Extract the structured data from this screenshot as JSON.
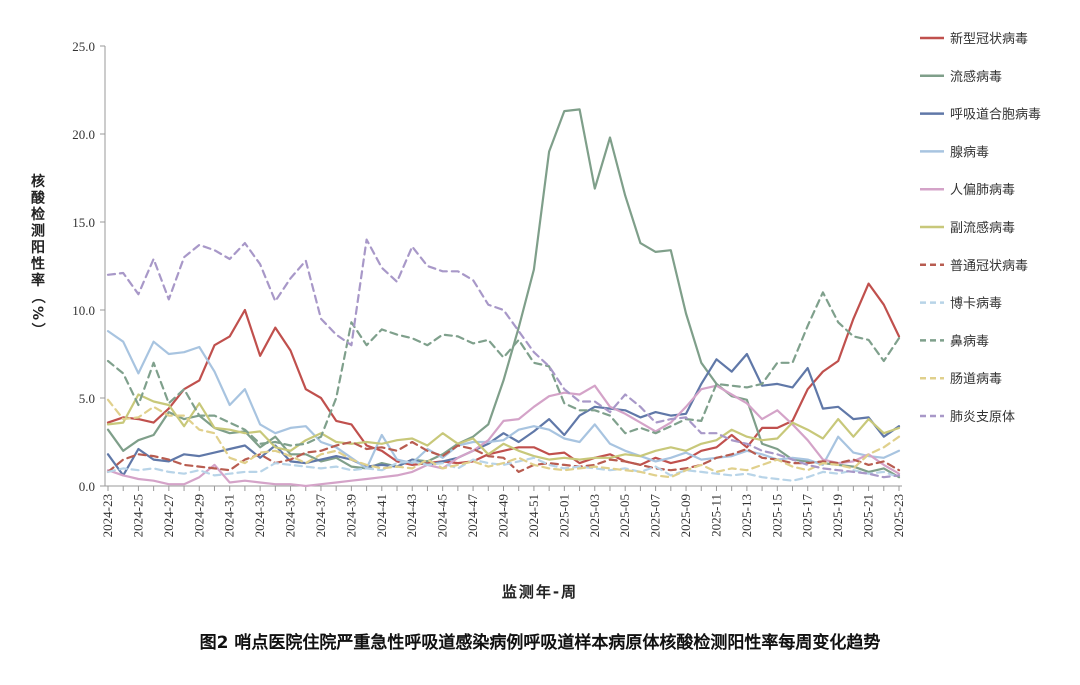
{
  "caption": "图2 哨点医院住院严重急性呼吸道感染病例呼吸道样本病原体核酸检测阳性率每周变化趋势",
  "chart_data": {
    "type": "line",
    "title": "图2 哨点医院住院严重急性呼吸道感染病例呼吸道样本病原体核酸检测阳性率每周变化趋势",
    "xlabel": "监测年-周",
    "ylabel": "核酸检测阳性率（%）",
    "ylabel_chars": [
      "核",
      "酸",
      "检",
      "测",
      "阳",
      "性",
      "率",
      "（",
      "%",
      "）"
    ],
    "ylim": [
      0,
      25
    ],
    "yticks": [
      0,
      5,
      10,
      15,
      20,
      25
    ],
    "ytick_labels": [
      "0.0",
      "5.0",
      "10.0",
      "15.0",
      "20.0",
      "25.0"
    ],
    "x": [
      "2024-23",
      "2024-24",
      "2024-25",
      "2024-26",
      "2024-27",
      "2024-28",
      "2024-29",
      "2024-30",
      "2024-31",
      "2024-32",
      "2024-33",
      "2024-34",
      "2024-35",
      "2024-36",
      "2024-37",
      "2024-38",
      "2024-39",
      "2024-40",
      "2024-41",
      "2024-42",
      "2024-43",
      "2024-44",
      "2024-45",
      "2024-46",
      "2024-47",
      "2024-48",
      "2024-49",
      "2024-50",
      "2024-51",
      "2024-52",
      "2025-01",
      "2025-02",
      "2025-03",
      "2025-04",
      "2025-05",
      "2025-06",
      "2025-07",
      "2025-08",
      "2025-09",
      "2025-10",
      "2025-11",
      "2025-12",
      "2025-13",
      "2025-14",
      "2025-15",
      "2025-16",
      "2025-17",
      "2025-18",
      "2025-19",
      "2025-20",
      "2025-21",
      "2025-22",
      "2025-23"
    ],
    "xtick_labels": [
      "2024-23",
      "2024-25",
      "2024-27",
      "2024-29",
      "2024-31",
      "2024-33",
      "2024-35",
      "2024-37",
      "2024-39",
      "2024-41",
      "2024-43",
      "2024-45",
      "2024-47",
      "2024-49",
      "2024-51",
      "2025-01",
      "2025-03",
      "2025-05",
      "2025-07",
      "2025-09",
      "2025-11",
      "2025-13",
      "2025-15",
      "2025-17",
      "2025-19",
      "2025-21",
      "2025-23"
    ],
    "series": [
      {
        "name": "新型冠状病毒",
        "color": "#c0504d",
        "dash": "solid",
        "values": [
          3.6,
          3.9,
          3.8,
          3.6,
          4.4,
          5.5,
          6.0,
          8.0,
          8.5,
          10.0,
          7.4,
          9.0,
          7.7,
          5.5,
          5.0,
          3.7,
          3.5,
          2.3,
          2.0,
          1.4,
          1.2,
          1.3,
          1.4,
          1.3,
          1.4,
          1.8,
          2.0,
          2.2,
          2.2,
          1.8,
          1.9,
          1.3,
          1.6,
          1.8,
          1.4,
          1.2,
          1.6,
          1.3,
          1.5,
          2.0,
          2.2,
          2.9,
          2.2,
          3.3,
          3.3,
          3.7,
          5.5,
          6.5,
          7.1,
          9.5,
          11.5,
          10.3,
          8.5
        ]
      },
      {
        "name": "流感病毒",
        "color": "#7f9f8a",
        "dash": "solid",
        "values": [
          3.2,
          2.0,
          2.6,
          2.9,
          4.2,
          3.8,
          4.0,
          3.3,
          3.0,
          3.1,
          2.2,
          2.8,
          1.8,
          1.8,
          1.4,
          1.6,
          1.1,
          1.0,
          1.3,
          1.1,
          1.5,
          1.4,
          1.8,
          2.4,
          2.8,
          3.5,
          6.0,
          9.0,
          12.3,
          19.0,
          21.3,
          21.4,
          16.9,
          19.8,
          16.5,
          13.8,
          13.3,
          13.4,
          9.8,
          7.0,
          5.8,
          5.1,
          4.9,
          2.4,
          2.1,
          1.5,
          1.4,
          1.3,
          1.2,
          1.1,
          0.8,
          1.0,
          0.5
        ]
      },
      {
        "name": "呼吸道合胞病毒",
        "color": "#6078a8",
        "dash": "solid",
        "values": [
          1.8,
          0.6,
          2.1,
          1.5,
          1.4,
          1.8,
          1.7,
          1.9,
          2.1,
          2.3,
          1.6,
          2.3,
          1.4,
          1.3,
          1.5,
          1.7,
          1.5,
          1.1,
          1.2,
          1.1,
          1.5,
          1.2,
          1.4,
          1.6,
          2.0,
          2.4,
          3.0,
          2.5,
          3.1,
          3.8,
          2.9,
          4.0,
          4.5,
          4.4,
          4.3,
          3.9,
          4.2,
          4.0,
          4.1,
          5.8,
          7.2,
          6.5,
          7.5,
          5.7,
          5.8,
          5.6,
          6.7,
          4.4,
          4.5,
          3.8,
          3.9,
          2.8,
          3.4
        ]
      },
      {
        "name": "腺病毒",
        "color": "#a8c4e0",
        "dash": "solid",
        "values": [
          8.8,
          8.2,
          6.4,
          8.2,
          7.5,
          7.6,
          7.9,
          6.5,
          4.6,
          5.5,
          3.5,
          3.0,
          3.3,
          3.4,
          2.5,
          2.2,
          1.6,
          1.0,
          2.9,
          1.5,
          1.3,
          2.1,
          1.6,
          2.3,
          2.5,
          2.5,
          2.6,
          3.2,
          3.4,
          3.2,
          2.7,
          2.5,
          3.5,
          2.4,
          2.0,
          1.7,
          1.4,
          1.6,
          1.9,
          1.5,
          1.6,
          1.7,
          2.0,
          1.8,
          1.5,
          1.6,
          1.5,
          1.2,
          2.8,
          1.9,
          1.7,
          1.6,
          2.0
        ]
      },
      {
        "name": "人偏肺病毒",
        "color": "#d4a3c8",
        "dash": "solid",
        "values": [
          0.9,
          0.6,
          0.4,
          0.3,
          0.1,
          0.1,
          0.5,
          1.2,
          0.2,
          0.3,
          0.2,
          0.1,
          0.1,
          0.0,
          0.1,
          0.2,
          0.3,
          0.4,
          0.5,
          0.6,
          0.8,
          1.2,
          1.0,
          1.6,
          2.0,
          2.6,
          3.7,
          3.8,
          4.5,
          5.1,
          5.3,
          5.2,
          5.7,
          4.5,
          4.1,
          3.6,
          3.1,
          3.6,
          4.5,
          5.5,
          5.7,
          5.2,
          4.7,
          3.8,
          4.3,
          3.5,
          2.6,
          1.5,
          1.3,
          1.4,
          1.8,
          1.2,
          0.7
        ]
      },
      {
        "name": "副流感病毒",
        "color": "#c8c87a",
        "dash": "solid",
        "values": [
          3.5,
          3.6,
          5.2,
          4.8,
          4.6,
          3.4,
          4.7,
          3.3,
          3.2,
          3.0,
          3.1,
          2.2,
          2.0,
          2.6,
          3.0,
          2.5,
          2.4,
          2.5,
          2.4,
          2.6,
          2.7,
          2.3,
          3.0,
          2.4,
          2.7,
          1.8,
          2.4,
          2.0,
          1.7,
          1.5,
          1.6,
          1.5,
          1.6,
          1.6,
          1.8,
          1.7,
          2.0,
          2.2,
          2.0,
          2.4,
          2.6,
          3.2,
          2.8,
          2.6,
          2.7,
          3.6,
          3.2,
          2.7,
          3.8,
          2.8,
          3.8,
          3.0,
          3.3
        ]
      },
      {
        "name": "普通冠状病毒",
        "color": "#b85c50",
        "dash": "dash",
        "values": [
          0.8,
          1.5,
          1.8,
          1.7,
          1.5,
          1.2,
          1.1,
          1.0,
          0.9,
          1.5,
          1.8,
          1.3,
          1.5,
          1.9,
          2.0,
          2.3,
          2.5,
          2.1,
          2.2,
          2.0,
          2.5,
          2.0,
          1.7,
          2.3,
          2.1,
          1.7,
          1.6,
          0.8,
          1.2,
          1.3,
          1.2,
          1.1,
          1.2,
          1.5,
          1.4,
          1.2,
          1.0,
          0.9,
          1.0,
          1.2,
          1.6,
          1.8,
          2.1,
          1.6,
          1.5,
          1.3,
          1.3,
          1.4,
          1.3,
          1.5,
          1.2,
          1.4,
          0.9
        ]
      },
      {
        "name": "博卡病毒",
        "color": "#b8d4e8",
        "dash": "dash",
        "values": [
          0.8,
          1.0,
          0.9,
          1.0,
          0.8,
          0.7,
          0.9,
          0.6,
          0.7,
          0.8,
          0.8,
          1.3,
          1.2,
          1.1,
          1.0,
          1.1,
          0.9,
          1.0,
          0.9,
          1.3,
          1.4,
          1.2,
          1.3,
          1.0,
          1.5,
          1.3,
          1.2,
          1.4,
          1.6,
          1.2,
          1.0,
          1.1,
          1.0,
          0.9,
          1.0,
          0.8,
          1.1,
          0.6,
          0.9,
          0.8,
          0.7,
          0.6,
          0.7,
          0.5,
          0.4,
          0.3,
          0.5,
          0.8,
          0.7,
          0.9,
          0.7,
          0.8,
          0.5
        ]
      },
      {
        "name": "鼻病毒",
        "color": "#7fa08c",
        "dash": "dash",
        "values": [
          7.1,
          6.4,
          4.6,
          7.0,
          4.7,
          5.5,
          4.0,
          4.0,
          3.6,
          3.2,
          2.4,
          2.5,
          2.3,
          2.4,
          2.8,
          5.0,
          9.3,
          8.0,
          8.9,
          8.6,
          8.4,
          8.0,
          8.6,
          8.5,
          8.1,
          8.3,
          7.3,
          8.3,
          7.0,
          6.8,
          4.7,
          4.3,
          4.3,
          4.0,
          3.0,
          3.3,
          3.0,
          3.4,
          3.8,
          3.7,
          5.8,
          5.7,
          5.6,
          5.8,
          7.0,
          7.0,
          9.1,
          11.0,
          9.3,
          8.5,
          8.3,
          7.1,
          8.4
        ]
      },
      {
        "name": "肠道病毒",
        "color": "#e0d08c",
        "dash": "dash",
        "values": [
          4.9,
          3.8,
          3.9,
          4.5,
          4.0,
          4.0,
          3.2,
          3.0,
          1.6,
          1.3,
          1.9,
          2.0,
          1.7,
          1.3,
          1.8,
          2.0,
          1.5,
          1.2,
          1.0,
          1.1,
          1.0,
          1.5,
          1.0,
          1.2,
          1.4,
          1.1,
          1.3,
          1.6,
          1.2,
          1.0,
          0.9,
          1.0,
          1.1,
          1.0,
          0.9,
          0.8,
          0.6,
          0.5,
          0.9,
          1.2,
          0.8,
          1.0,
          0.9,
          1.2,
          1.5,
          1.1,
          0.9,
          1.3,
          1.2,
          1.0,
          1.8,
          2.2,
          2.8
        ]
      },
      {
        "name": "肺炎支原体",
        "color": "#a898c8",
        "dash": "dash",
        "values": [
          12.0,
          12.1,
          10.9,
          12.9,
          10.6,
          13.0,
          13.7,
          13.4,
          12.9,
          13.8,
          12.6,
          10.5,
          11.8,
          12.8,
          9.5,
          8.6,
          8.0,
          14.0,
          12.4,
          11.6,
          13.6,
          12.5,
          12.2,
          12.2,
          11.7,
          10.3,
          10.0,
          8.8,
          7.6,
          6.8,
          5.5,
          4.8,
          4.8,
          4.2,
          5.2,
          4.5,
          3.6,
          3.8,
          3.9,
          3.0,
          3.0,
          2.6,
          2.4,
          2.0,
          1.8,
          1.5,
          1.2,
          1.0,
          0.9,
          0.8,
          0.7,
          0.5,
          0.6
        ]
      }
    ]
  }
}
